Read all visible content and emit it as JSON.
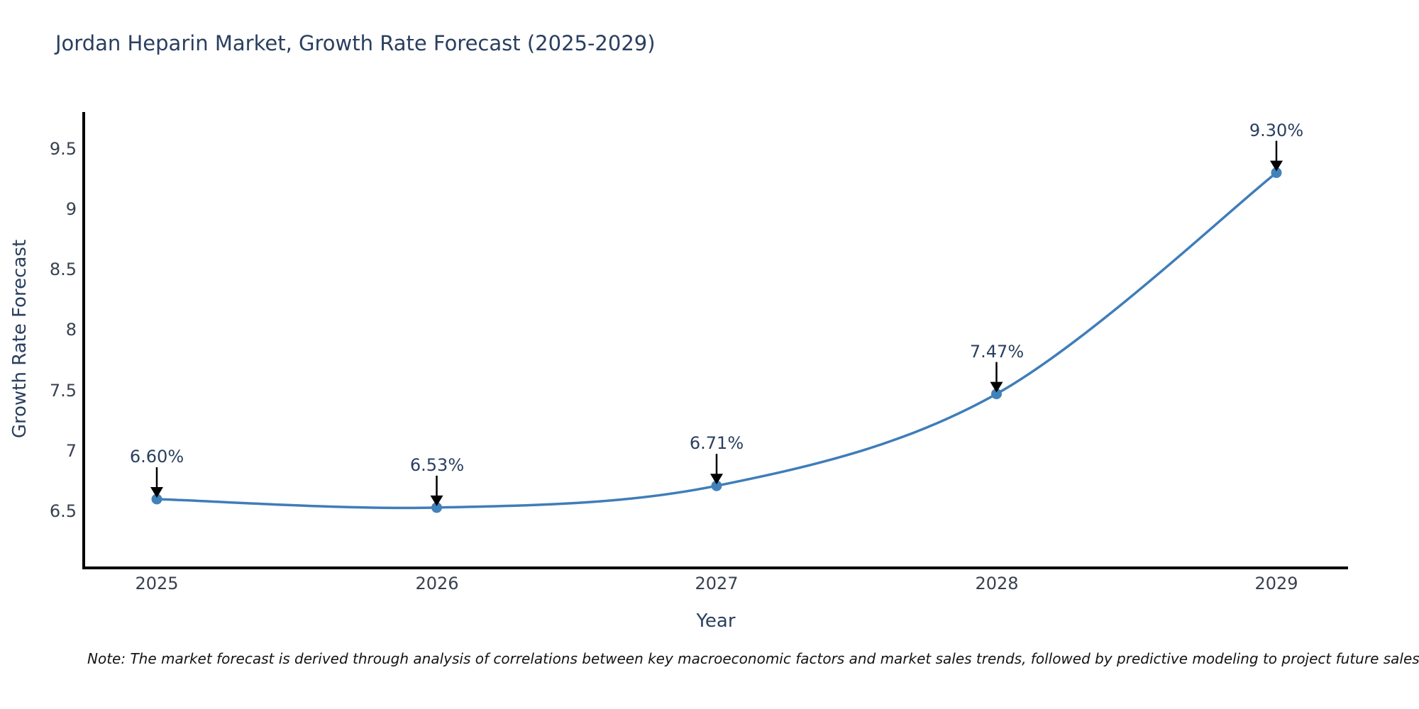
{
  "title": "Jordan Heparin Market, Growth Rate Forecast (2025-2029)",
  "note": "Note: The market forecast is derived through analysis of correlations between key macroeconomic factors and market sales trends, followed by predictive modeling to project future sales",
  "chart_data": {
    "type": "line",
    "title": "Jordan Heparin Market, Growth Rate Forecast (2025-2029)",
    "xlabel": "Year",
    "ylabel": "Growth Rate Forecast",
    "x": [
      2025,
      2026,
      2027,
      2028,
      2029
    ],
    "series": [
      {
        "name": "Growth Rate Forecast",
        "values": [
          6.6,
          6.53,
          6.71,
          7.47,
          9.3
        ]
      }
    ],
    "point_labels": [
      "6.60%",
      "6.53%",
      "6.71%",
      "7.47%",
      "9.30%"
    ],
    "xtick_labels": [
      "2025",
      "2026",
      "2027",
      "2028",
      "2029"
    ],
    "ytick_values": [
      6.5,
      7,
      7.5,
      8,
      8.5,
      9,
      9.5
    ],
    "ytick_labels": [
      "6.5",
      "7",
      "7.5",
      "8",
      "8.5",
      "9",
      "9.5"
    ],
    "ylim": [
      6.03,
      9.8
    ],
    "grid": false,
    "legend": "none",
    "line_smoothing": "spline",
    "colors": {
      "line": "#3f7db9",
      "marker": "#4282ba",
      "axis": "#000000",
      "annotation_arrow": "#000000",
      "title_text": "#2a3f5f",
      "tick_text": "#38414f",
      "note_text": "#141414",
      "background": "#ffffff"
    }
  }
}
